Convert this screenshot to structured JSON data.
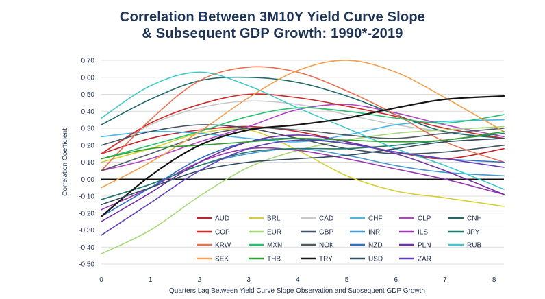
{
  "chart_data": {
    "type": "line",
    "title_line_1": "Correlation Between 3M10Y Yield Curve Slope",
    "title_line_2": "& Subsequent GDP Growth: 1990*-2019",
    "xlabel": "Quarters Lag Between Yield Curve Slope Observation and Subsequent GDP Growth",
    "ylabel": "Correlation Coefficient",
    "xlim": [
      0,
      8.2
    ],
    "ylim": [
      -0.5,
      0.7
    ],
    "x_ticks": [
      "0",
      "1",
      "2",
      "3",
      "4",
      "5",
      "6",
      "7",
      "8"
    ],
    "y_ticks": [
      "0.70",
      "0.60",
      "0.50",
      "0.40",
      "0.30",
      "0.20",
      "0.10",
      "0.00",
      "-0.10",
      "-0.20",
      "-0.30",
      "-0.40",
      "-0.50"
    ],
    "grid": "horizontal",
    "x": [
      0,
      1,
      2,
      3,
      4,
      5,
      6,
      7,
      8.2
    ],
    "series": [
      {
        "name": "AUD",
        "color": "#c8202a",
        "values": [
          0.15,
          0.24,
          0.29,
          0.31,
          0.28,
          0.22,
          0.16,
          0.12,
          0.18
        ]
      },
      {
        "name": "BRL",
        "color": "#d4d030",
        "values": [
          0.1,
          0.18,
          0.27,
          0.29,
          0.17,
          0.02,
          -0.07,
          -0.11,
          -0.16
        ]
      },
      {
        "name": "CAD",
        "color": "#c8c8c8",
        "values": [
          0.15,
          0.32,
          0.42,
          0.46,
          0.44,
          0.38,
          0.32,
          0.28,
          0.24
        ]
      },
      {
        "name": "CHF",
        "color": "#45b8e8",
        "values": [
          0.25,
          0.28,
          0.27,
          0.24,
          0.22,
          0.26,
          0.32,
          0.34,
          0.35
        ]
      },
      {
        "name": "CLP",
        "color": "#b045c0",
        "values": [
          0.05,
          0.12,
          0.22,
          0.31,
          0.41,
          0.44,
          0.39,
          0.32,
          0.25
        ]
      },
      {
        "name": "CNH",
        "color": "#1f6b6b",
        "values": [
          0.32,
          0.47,
          0.58,
          0.6,
          0.57,
          0.49,
          0.38,
          0.28,
          0.24
        ]
      },
      {
        "name": "COP",
        "color": "#d02828",
        "values": [
          0.15,
          0.33,
          0.44,
          0.5,
          0.48,
          0.43,
          0.37,
          0.3,
          0.24
        ]
      },
      {
        "name": "EUR",
        "color": "#a8d878",
        "values": [
          -0.44,
          -0.3,
          -0.1,
          0.07,
          0.17,
          0.23,
          0.27,
          0.29,
          0.31
        ]
      },
      {
        "name": "GBP",
        "color": "#405060",
        "values": [
          0.2,
          0.28,
          0.32,
          0.3,
          0.24,
          0.18,
          0.15,
          0.16,
          0.2
        ]
      },
      {
        "name": "INR",
        "color": "#4898d0",
        "values": [
          -0.12,
          -0.03,
          0.08,
          0.15,
          0.18,
          0.14,
          0.08,
          0.04,
          0.02
        ]
      },
      {
        "name": "ILS",
        "color": "#9838b0",
        "values": [
          -0.18,
          -0.05,
          0.1,
          0.18,
          0.17,
          0.12,
          0.06,
          0.0,
          -0.09
        ]
      },
      {
        "name": "JPY",
        "color": "#20786a",
        "values": [
          -0.12,
          -0.03,
          0.08,
          0.16,
          0.18,
          0.18,
          0.2,
          0.23,
          0.27
        ]
      },
      {
        "name": "KRW",
        "color": "#e87050",
        "values": [
          0.05,
          0.35,
          0.58,
          0.66,
          0.63,
          0.52,
          0.38,
          0.22,
          0.1
        ]
      },
      {
        "name": "MXN",
        "color": "#28c070",
        "values": [
          0.12,
          0.2,
          0.28,
          0.37,
          0.42,
          0.4,
          0.36,
          0.33,
          0.38
        ]
      },
      {
        "name": "NOK",
        "color": "#505a64",
        "values": [
          0.05,
          0.15,
          0.25,
          0.3,
          0.29,
          0.26,
          0.24,
          0.27,
          0.3
        ]
      },
      {
        "name": "NZD",
        "color": "#3070c0",
        "values": [
          -0.22,
          -0.05,
          0.12,
          0.22,
          0.24,
          0.21,
          0.16,
          0.12,
          0.1
        ]
      },
      {
        "name": "PLN",
        "color": "#7030a0",
        "values": [
          -0.25,
          -0.08,
          0.1,
          0.22,
          0.26,
          0.22,
          0.15,
          0.05,
          -0.09
        ]
      },
      {
        "name": "RUB",
        "color": "#40c8c8",
        "values": [
          0.36,
          0.55,
          0.63,
          0.55,
          0.42,
          0.3,
          0.18,
          0.08,
          -0.06
        ]
      },
      {
        "name": "SEK",
        "color": "#f0a050",
        "values": [
          -0.05,
          0.1,
          0.28,
          0.48,
          0.64,
          0.7,
          0.63,
          0.48,
          0.28
        ]
      },
      {
        "name": "THB",
        "color": "#30a030",
        "values": [
          0.12,
          0.18,
          0.2,
          0.22,
          0.24,
          0.23,
          0.22,
          0.23,
          0.28
        ]
      },
      {
        "name": "TRY",
        "color": "#151515",
        "values": [
          -0.22,
          0.02,
          0.2,
          0.29,
          0.32,
          0.36,
          0.42,
          0.47,
          0.49
        ]
      },
      {
        "name": "USD",
        "color": "#304a60",
        "values": [
          -0.15,
          -0.05,
          0.05,
          0.1,
          0.12,
          0.14,
          0.18,
          0.22,
          0.24
        ]
      },
      {
        "name": "ZAR",
        "color": "#6040b8",
        "values": [
          -0.33,
          -0.14,
          0.05,
          0.18,
          0.23,
          0.21,
          0.16,
          0.12,
          0.07
        ]
      }
    ],
    "legend": [
      [
        "AUD",
        "BRL",
        "CAD",
        "CHF",
        "CLP",
        "CNH"
      ],
      [
        "COP",
        "EUR",
        "GBP",
        "INR",
        "ILS",
        "JPY"
      ],
      [
        "KRW",
        "MXN",
        "NOK",
        "NZD",
        "PLN",
        "RUB"
      ],
      [
        "SEK",
        "THB",
        "TRY",
        "USD",
        "ZAR"
      ]
    ]
  }
}
